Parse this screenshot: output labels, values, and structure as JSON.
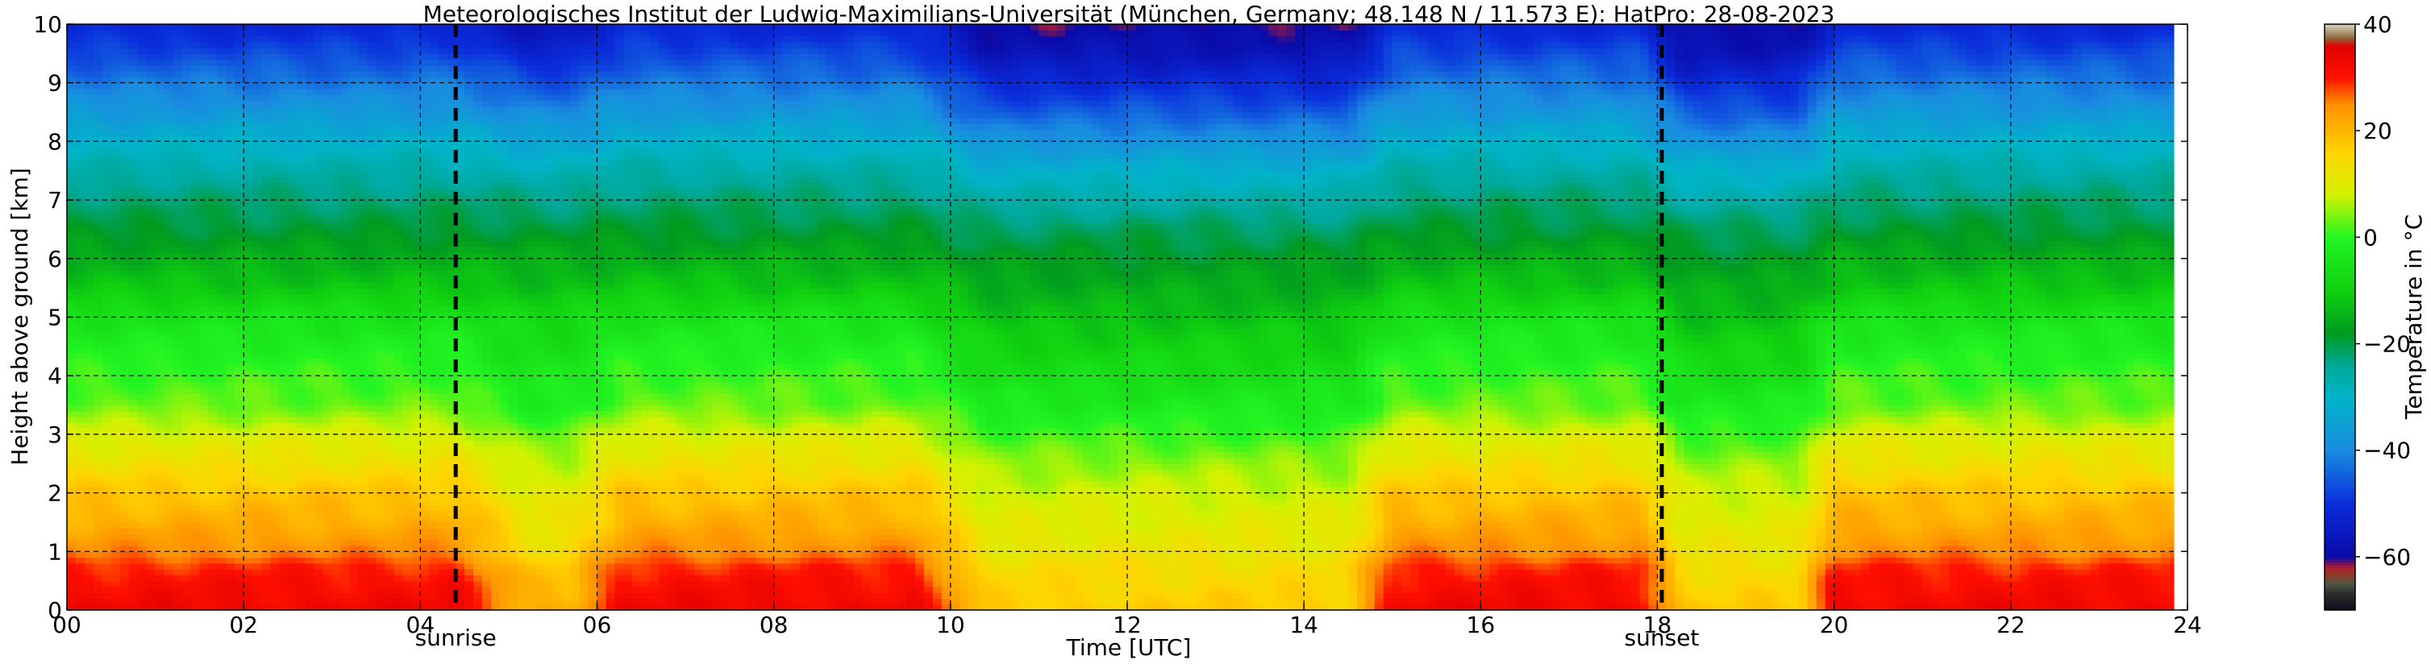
{
  "chart_data": {
    "type": "heatmap",
    "title": "Meteorologisches Institut der Ludwig-Maximilians-Universität (München, Germany; 48.148 N / 11.573 E):    HatPro: 28-08-2023",
    "xlabel": "Time [UTC]",
    "ylabel": "Height above ground [km]",
    "colorbar_label": "Temperature in $^\\circ$C",
    "colorbar_label_display": "Temperature in °C",
    "xlim": [
      0,
      24
    ],
    "ylim": [
      0,
      10
    ],
    "x_ticks": [
      0,
      2,
      4,
      6,
      8,
      10,
      12,
      14,
      16,
      18,
      20,
      22,
      24
    ],
    "x_tick_labels": [
      "00",
      "02",
      "04",
      "06",
      "08",
      "10",
      "12",
      "14",
      "16",
      "18",
      "20",
      "22",
      "24"
    ],
    "y_ticks": [
      0,
      1,
      2,
      3,
      4,
      5,
      6,
      7,
      8,
      9,
      10
    ],
    "y_tick_labels": [
      "0",
      "1",
      "2",
      "3",
      "4",
      "5",
      "6",
      "7",
      "8",
      "9",
      "10"
    ],
    "colorbar_range": [
      -70,
      40
    ],
    "colorbar_ticks": [
      -60,
      -40,
      -20,
      0,
      20,
      40
    ],
    "colorbar_tick_labels": [
      "−60",
      "−40",
      "−20",
      "0",
      "20",
      "40"
    ],
    "grid": true,
    "data_end_hour": 23.85,
    "annotations": [
      {
        "label": "sunrise",
        "x": 4.4
      },
      {
        "label": "sunset",
        "x": 18.05
      }
    ],
    "colormap": [
      {
        "t": -70,
        "color": "#0d0d1f"
      },
      {
        "t": -67,
        "color": "#2b2b2b"
      },
      {
        "t": -65,
        "color": "#4f5744"
      },
      {
        "t": -63.5,
        "color": "#8a3d2b"
      },
      {
        "t": -62,
        "color": "#b01c2e"
      },
      {
        "t": -60,
        "color": "#0a0aa8"
      },
      {
        "t": -50,
        "color": "#0a2ddc"
      },
      {
        "t": -40,
        "color": "#1a8ce0"
      },
      {
        "t": -30,
        "color": "#00b4c8"
      },
      {
        "t": -24,
        "color": "#00a898"
      },
      {
        "t": -18,
        "color": "#009a20"
      },
      {
        "t": -10,
        "color": "#10d010"
      },
      {
        "t": 0,
        "color": "#22f522"
      },
      {
        "t": 8,
        "color": "#d4f200"
      },
      {
        "t": 16,
        "color": "#ffd400"
      },
      {
        "t": 25,
        "color": "#ff9000"
      },
      {
        "t": 30,
        "color": "#ff1000"
      },
      {
        "t": 36,
        "color": "#e00000"
      },
      {
        "t": 37.5,
        "color": "#8c6a3c"
      },
      {
        "t": 39,
        "color": "#b9a88a"
      },
      {
        "t": 40,
        "color": "#d9d0c0"
      }
    ],
    "profile_heights_km": [
      0,
      0.25,
      0.5,
      0.75,
      1,
      1.5,
      2,
      2.5,
      3,
      3.5,
      4,
      4.5,
      5,
      5.5,
      6,
      6.5,
      7,
      7.5,
      8,
      8.5,
      9,
      9.5,
      10
    ],
    "profiles": {
      "warm": [
        33,
        32,
        31,
        29,
        25,
        21,
        18,
        13,
        9,
        3,
        1,
        -2,
        -5,
        -11,
        -15,
        -19,
        -22,
        -26,
        -31,
        -37,
        -42,
        -47,
        -52
      ],
      "cool": [
        21,
        20,
        19,
        17,
        14,
        12,
        10,
        7,
        3,
        -2,
        -4,
        -6,
        -8,
        -12,
        -15,
        -19,
        -23,
        -28,
        -34,
        -40,
        -46,
        -53,
        -57
      ],
      "cold_upper": [
        17,
        16,
        15,
        14,
        12,
        10,
        8,
        5,
        1,
        -3,
        -6,
        -9,
        -12,
        -15,
        -18,
        -21,
        -26,
        -31,
        -38,
        -45,
        -51,
        -57,
        -60
      ]
    },
    "time_regime": [
      {
        "from": 0.0,
        "to": 4.4,
        "profile": "warm"
      },
      {
        "from": 4.4,
        "to": 5.2,
        "profile": "warm_to_cool"
      },
      {
        "from": 5.2,
        "to": 5.7,
        "profile": "cool"
      },
      {
        "from": 5.7,
        "to": 6.3,
        "profile": "cool_to_warm"
      },
      {
        "from": 6.3,
        "to": 9.6,
        "profile": "warm"
      },
      {
        "from": 9.6,
        "to": 10.4,
        "profile": "warm_to_cool"
      },
      {
        "from": 10.4,
        "to": 14.5,
        "profile": "cold_upper"
      },
      {
        "from": 14.5,
        "to": 15.0,
        "profile": "cool_to_warm"
      },
      {
        "from": 15.0,
        "to": 17.8,
        "profile": "warm"
      },
      {
        "from": 17.8,
        "to": 18.3,
        "profile": "warm_to_cool"
      },
      {
        "from": 18.3,
        "to": 19.6,
        "profile": "cold_upper"
      },
      {
        "from": 19.6,
        "to": 20.0,
        "profile": "cool_to_warm"
      },
      {
        "from": 20.0,
        "to": 23.85,
        "profile": "warm"
      }
    ]
  }
}
